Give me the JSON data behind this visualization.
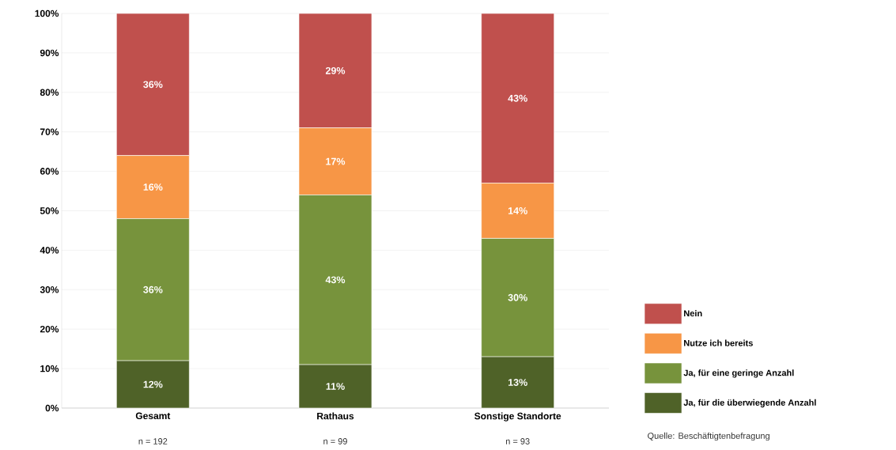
{
  "chart_data": {
    "type": "bar",
    "stacked": true,
    "categories": [
      "Gesamt",
      "Rathaus",
      "Sonstige Standorte"
    ],
    "series": [
      {
        "name": "Ja, für die überwiegende Anzahl",
        "color": "#4f6228",
        "values": [
          12,
          11,
          13
        ],
        "value_labels": [
          "12%",
          "11%",
          "13%"
        ]
      },
      {
        "name": "Ja, für eine geringe Anzahl",
        "color": "#77933c",
        "values": [
          36,
          43,
          30
        ],
        "value_labels": [
          "36%",
          "43%",
          "30%"
        ]
      },
      {
        "name": "Nutze ich bereits",
        "color": "#f79646",
        "values": [
          16,
          17,
          14
        ],
        "value_labels": [
          "16%",
          "17%",
          "14%"
        ]
      },
      {
        "name": "Nein",
        "color": "#c0504d",
        "values": [
          36,
          29,
          43
        ],
        "value_labels": [
          "36%",
          "29%",
          "43%"
        ]
      }
    ],
    "ylim": [
      0,
      100
    ],
    "yticks": [
      {
        "value": 0,
        "label": "0%"
      },
      {
        "value": 10,
        "label": "10%"
      },
      {
        "value": 20,
        "label": "20%"
      },
      {
        "value": 30,
        "label": "30%"
      },
      {
        "value": 40,
        "label": "40%"
      },
      {
        "value": 50,
        "label": "50%"
      },
      {
        "value": 60,
        "label": "60%"
      },
      {
        "value": 70,
        "label": "70%"
      },
      {
        "value": 80,
        "label": "80%"
      },
      {
        "value": 90,
        "label": "90%"
      },
      {
        "value": 100,
        "label": "100%"
      }
    ],
    "grid": "y",
    "legend": "right",
    "annotations": [
      "n = 192",
      "n = 99",
      "n = 93",
      "Quelle: Beschäftigtenbefragung"
    ]
  }
}
